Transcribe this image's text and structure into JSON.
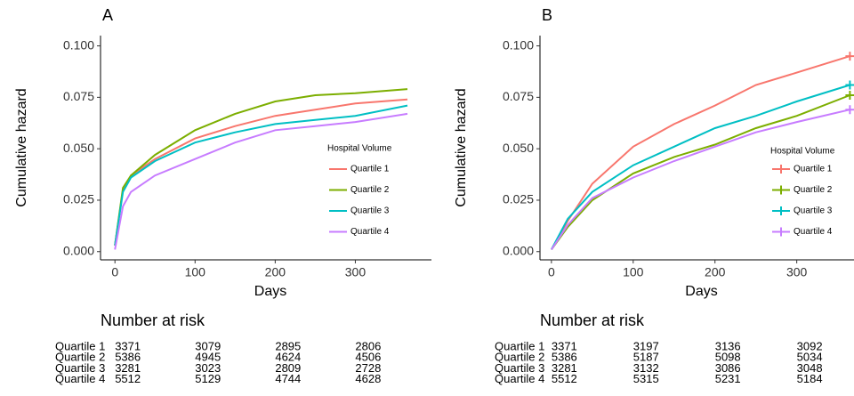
{
  "chart_data": [
    {
      "type": "line",
      "title": "A",
      "x_label": "Days",
      "y_label": "Cumulative hazard",
      "x": [
        0,
        10,
        20,
        50,
        100,
        150,
        200,
        250,
        300,
        365
      ],
      "series": [
        {
          "name": "Quartile 1",
          "color": "#F8766D",
          "values": [
            0.003,
            0.03,
            0.037,
            0.045,
            0.055,
            0.061,
            0.066,
            0.069,
            0.072,
            0.074
          ]
        },
        {
          "name": "Quartile 2",
          "color": "#7CAE00",
          "values": [
            0.003,
            0.031,
            0.037,
            0.047,
            0.059,
            0.067,
            0.073,
            0.076,
            0.077,
            0.079
          ]
        },
        {
          "name": "Quartile 3",
          "color": "#00BFC4",
          "values": [
            0.003,
            0.029,
            0.036,
            0.044,
            0.053,
            0.058,
            0.062,
            0.064,
            0.066,
            0.071
          ]
        },
        {
          "name": "Quartile 4",
          "color": "#C77CFF",
          "values": [
            0.001,
            0.022,
            0.029,
            0.037,
            0.045,
            0.053,
            0.059,
            0.061,
            0.063,
            0.067
          ]
        }
      ],
      "legend_title": "Hospital Volume",
      "end_marks": false,
      "xlim": [
        -18,
        395
      ],
      "xticks": [
        0,
        100,
        200,
        300
      ],
      "ylim": [
        -0.004,
        0.105
      ],
      "yticks": [
        {
          "value": 0,
          "label": "0.000"
        },
        {
          "value": 0.025,
          "label": "0.025"
        },
        {
          "value": 0.05,
          "label": "0.050"
        },
        {
          "value": 0.075,
          "label": "0.075"
        },
        {
          "value": 0.1,
          "label": "0.100"
        }
      ],
      "risk_table": {
        "title": "Number at risk",
        "rows": [
          {
            "label": "Quartile 1",
            "values": [
              3371,
              3079,
              2895,
              2806
            ]
          },
          {
            "label": "Quartile 2",
            "values": [
              5386,
              4945,
              4624,
              4506
            ]
          },
          {
            "label": "Quartile 3",
            "values": [
              3281,
              3023,
              2809,
              2728
            ]
          },
          {
            "label": "Quartile 4",
            "values": [
              5512,
              5129,
              4744,
              4628
            ]
          }
        ]
      }
    },
    {
      "type": "line",
      "title": "B",
      "x_label": "Days",
      "y_label": "Cumulative hazard",
      "x": [
        0,
        20,
        50,
        100,
        150,
        200,
        250,
        300,
        365
      ],
      "series": [
        {
          "name": "Quartile 1",
          "color": "#F8766D",
          "values": [
            0.001,
            0.015,
            0.033,
            0.051,
            0.062,
            0.071,
            0.081,
            0.087,
            0.095
          ]
        },
        {
          "name": "Quartile 2",
          "color": "#7CAE00",
          "values": [
            0.001,
            0.012,
            0.025,
            0.038,
            0.046,
            0.052,
            0.06,
            0.066,
            0.076
          ]
        },
        {
          "name": "Quartile 3",
          "color": "#00BFC4",
          "values": [
            0.001,
            0.016,
            0.029,
            0.042,
            0.051,
            0.06,
            0.066,
            0.073,
            0.081
          ]
        },
        {
          "name": "Quartile 4",
          "color": "#C77CFF",
          "values": [
            0.001,
            0.013,
            0.026,
            0.036,
            0.044,
            0.051,
            0.058,
            0.063,
            0.069
          ]
        }
      ],
      "legend_title": "Hospital Volume",
      "end_marks": true,
      "xlim": [
        -14,
        370
      ],
      "xticks": [
        0,
        100,
        200,
        300
      ],
      "ylim": [
        -0.004,
        0.105
      ],
      "yticks": [
        {
          "value": 0,
          "label": "0.000"
        },
        {
          "value": 0.025,
          "label": "0.025"
        },
        {
          "value": 0.05,
          "label": "0.050"
        },
        {
          "value": 0.075,
          "label": "0.075"
        },
        {
          "value": 0.1,
          "label": "0.100"
        }
      ],
      "risk_table": {
        "title": "Number at risk",
        "rows": [
          {
            "label": "Quartile 1",
            "values": [
              3371,
              3197,
              3136,
              3092
            ]
          },
          {
            "label": "Quartile 2",
            "values": [
              5386,
              5187,
              5098,
              5034
            ]
          },
          {
            "label": "Quartile 3",
            "values": [
              3281,
              3132,
              3086,
              3048
            ]
          },
          {
            "label": "Quartile 4",
            "values": [
              5512,
              5315,
              5231,
              5184
            ]
          }
        ]
      }
    }
  ]
}
